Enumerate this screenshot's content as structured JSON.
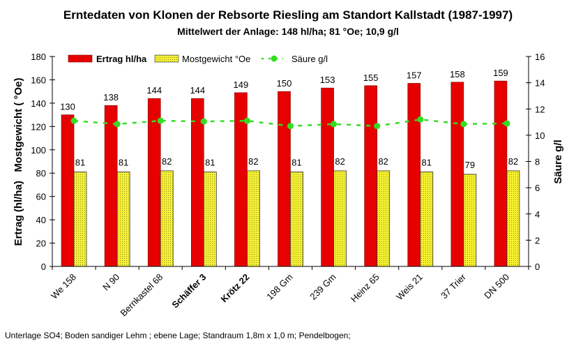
{
  "chart_data": {
    "type": "bar",
    "title": "Erntedaten von Klonen der Rebsorte Riesling am Standort Kallstadt  (1987-1997)",
    "subtitle": "Mittelwert der Anlage: 148 hl/ha; 81 °Oe; 10,9 g/l",
    "ylabel_left": "Ertrag (hl/ha)   Mostgewicht ( °Oe)",
    "ylabel_right": "Säure g/l",
    "ylim_left": [
      0,
      180
    ],
    "yticks_left": [
      0,
      20,
      40,
      60,
      80,
      100,
      120,
      140,
      160,
      180
    ],
    "ylim_right": [
      0,
      16
    ],
    "yticks_right": [
      0,
      2,
      4,
      6,
      8,
      10,
      12,
      14,
      16
    ],
    "categories": [
      "We 158",
      "N 90",
      "Bernkastel 68",
      "Schäffer 3",
      "Krötz 22",
      "198 Gm",
      "239 Gm",
      "Heinz 65",
      "Weis 21",
      "37 Trier",
      "DN 500"
    ],
    "bold_categories": [
      "Schäffer 3",
      "Krötz 22"
    ],
    "legend_position": "top-left",
    "series": [
      {
        "name": "Ertrag hl/ha",
        "type": "bar",
        "axis": "left",
        "color": "#e60000",
        "values": [
          130,
          138,
          144,
          144,
          149,
          150,
          153,
          155,
          157,
          158,
          159
        ]
      },
      {
        "name": "Mostgewicht °Oe",
        "type": "bar",
        "axis": "left",
        "color": "#f5f032",
        "values": [
          81,
          81,
          82,
          81,
          82,
          81,
          82,
          82,
          81,
          79,
          82
        ]
      },
      {
        "name": "Säure g/l",
        "type": "line",
        "axis": "right",
        "color": "#33dd22",
        "values": [
          11.1,
          10.85,
          11.1,
          11.05,
          11.1,
          10.7,
          10.85,
          10.7,
          11.2,
          10.85,
          10.9
        ]
      }
    ]
  },
  "footnote": "Unterlage SO4; Boden sandiger Lehm ; ebene Lage; Standraum 1,8m x 1,0 m; Pendelbogen;"
}
